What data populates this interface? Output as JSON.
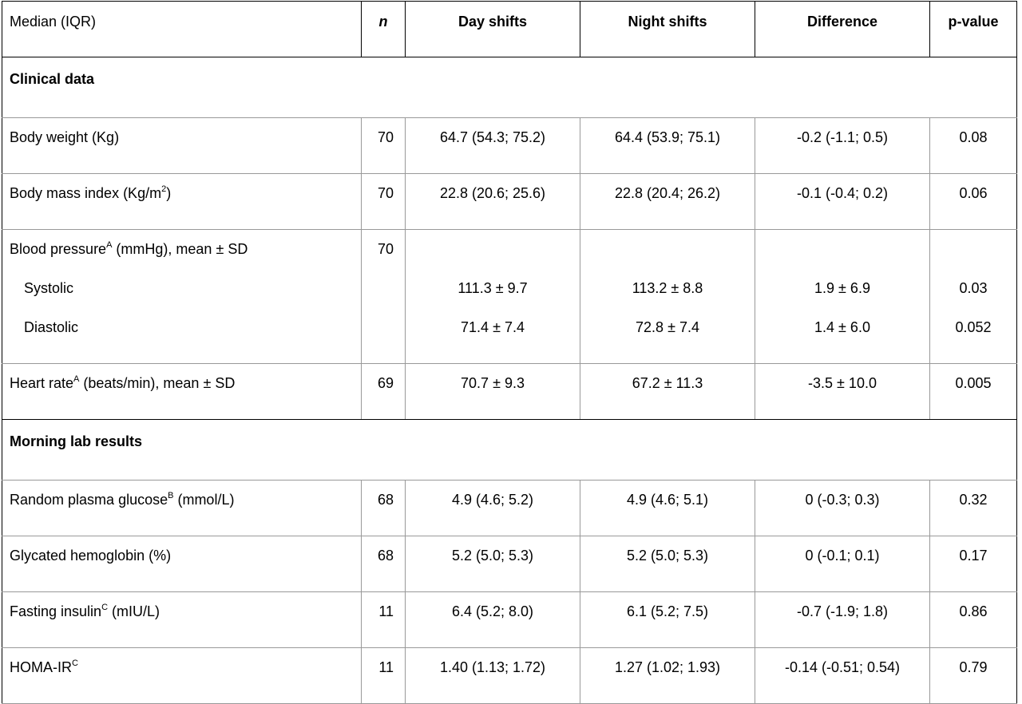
{
  "header": {
    "label": "Median (IQR)",
    "n": "n",
    "day": "Day shifts",
    "night": "Night shifts",
    "diff": "Difference",
    "p": "p-value"
  },
  "sections": {
    "clinical": "Clinical data",
    "lab": "Morning lab results"
  },
  "rows": {
    "weight": {
      "label": "Body weight (Kg)",
      "n": "70",
      "day": "64.7 (54.3; 75.2)",
      "night": "64.4 (53.9; 75.1)",
      "diff": "-0.2 (-1.1; 0.5)",
      "p": "0.08"
    },
    "bmi": {
      "label": "Body mass index (Kg/m",
      "sup": "2",
      "label_end": ")",
      "n": "70",
      "day": "22.8 (20.6; 25.6)",
      "night": "22.8 (20.4; 26.2)",
      "diff": "-0.1 (-0.4; 0.2)",
      "p": "0.06"
    },
    "bp": {
      "label": "Blood pressure",
      "sup": "A",
      "label_end": " (mmHg), mean ± SD",
      "n": "70",
      "systolic": {
        "label": "Systolic",
        "day": "111.3 ± 9.7",
        "night": "113.2 ± 8.8",
        "diff": "1.9 ± 6.9",
        "p": "0.03"
      },
      "diastolic": {
        "label": "Diastolic",
        "day": "71.4 ± 7.4",
        "night": "72.8 ± 7.4",
        "diff": "1.4 ± 6.0",
        "p": "0.052"
      }
    },
    "hr": {
      "label": "Heart rate",
      "sup": "A",
      "label_end": " (beats/min), mean ± SD",
      "n": "69",
      "day": "70.7 ± 9.3",
      "night": "67.2 ± 11.3",
      "diff": "-3.5 ± 10.0",
      "p": "0.005"
    },
    "glucose": {
      "label": "Random plasma glucose",
      "sup": "B",
      "label_end": " (mmol/L)",
      "n": "68",
      "day": "4.9 (4.6; 5.2)",
      "night": "4.9 (4.6; 5.1)",
      "diff": "0 (-0.3; 0.3)",
      "p": "0.32"
    },
    "hba1c": {
      "label": "Glycated hemoglobin (%)",
      "n": "68",
      "day": "5.2 (5.0; 5.3)",
      "night": "5.2 (5.0; 5.3)",
      "diff": "0 (-0.1; 0.1)",
      "p": "0.17"
    },
    "insulin": {
      "label": "Fasting insulin",
      "sup": "C",
      "label_end": " (mIU/L)",
      "n": "11",
      "day": "6.4 (5.2; 8.0)",
      "night": "6.1 (5.2; 7.5)",
      "diff": "-0.7 (-1.9; 1.8)",
      "p": "0.86"
    },
    "homa": {
      "label": "HOMA-IR",
      "sup": "C",
      "label_end": "",
      "n": "11",
      "day": "1.40 (1.13; 1.72)",
      "night": "1.27 (1.02; 1.93)",
      "diff": "-0.14 (-0.51; 0.54)",
      "p": "0.79"
    }
  }
}
